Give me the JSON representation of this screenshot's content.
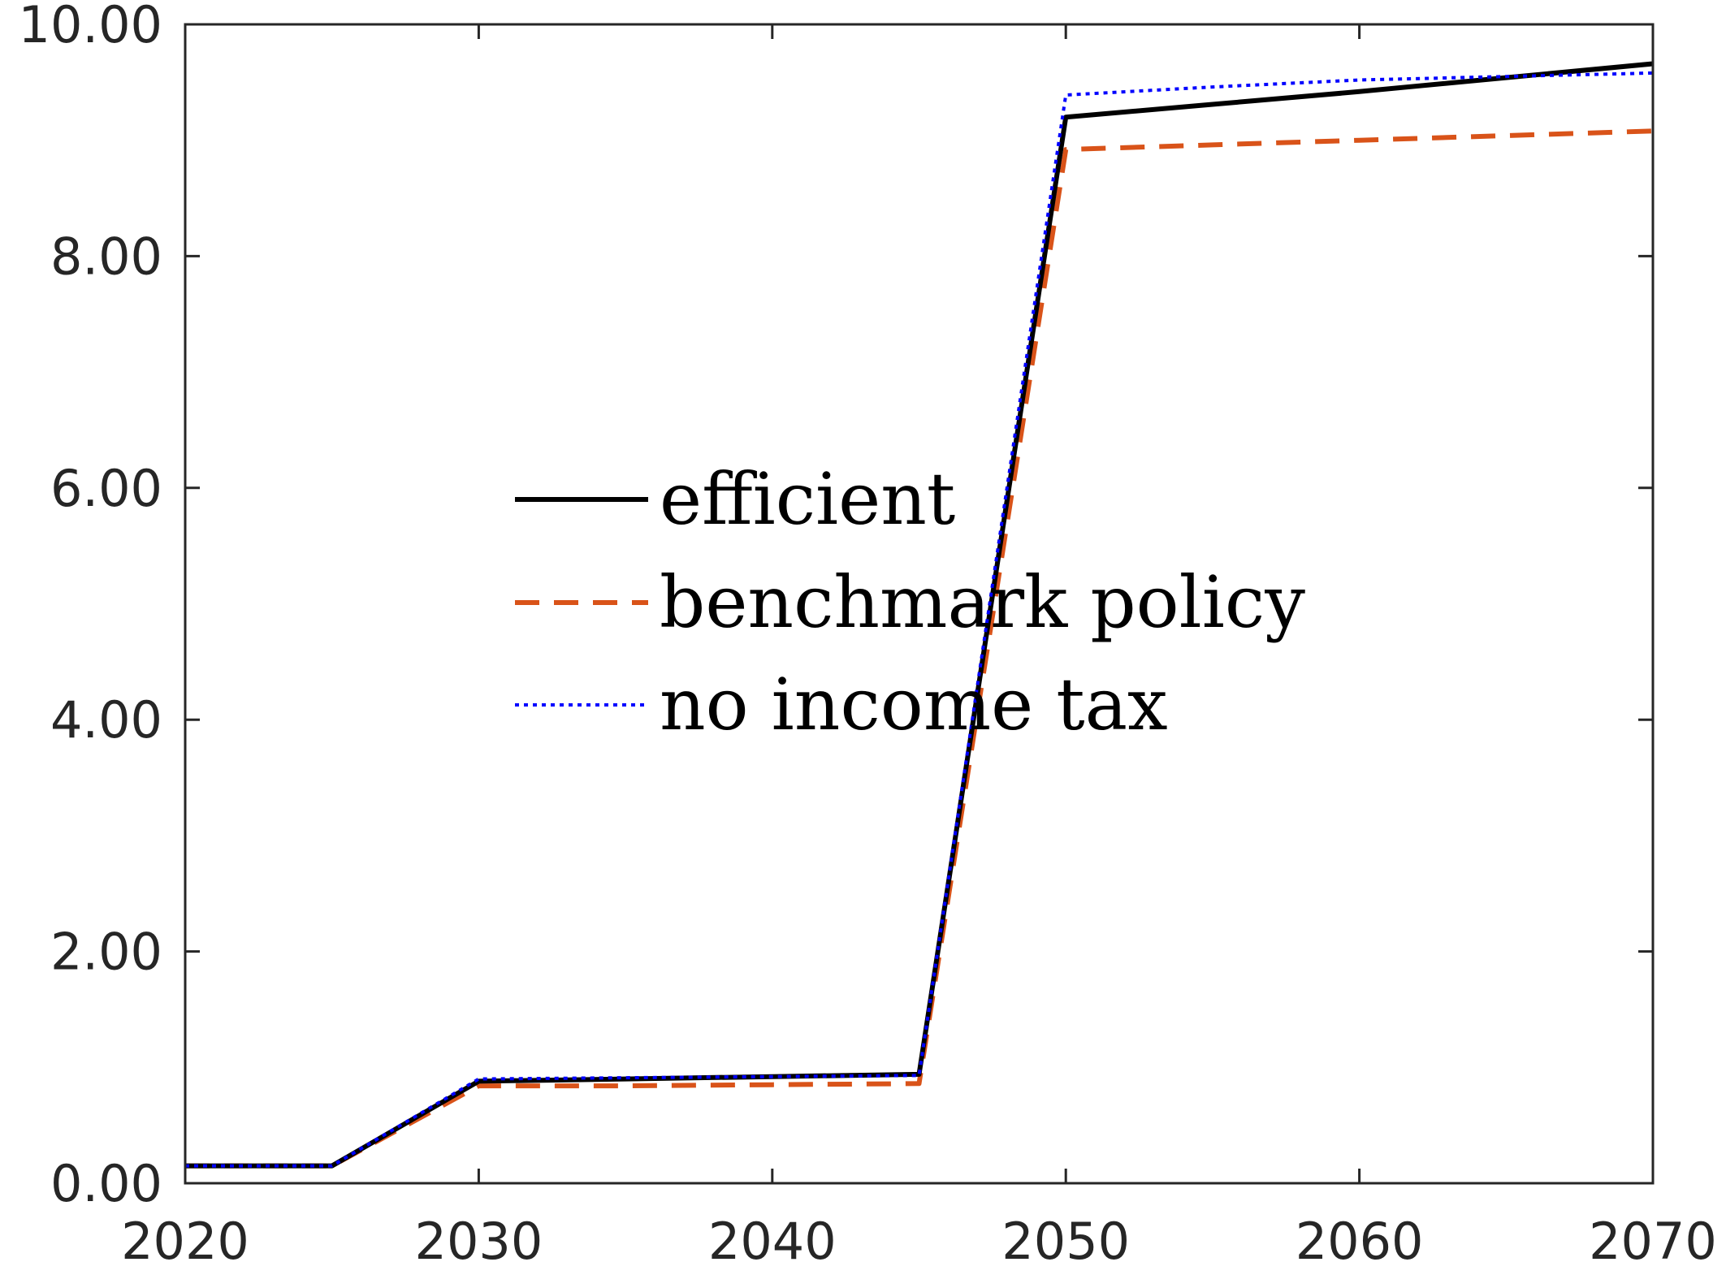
{
  "chart_data": {
    "type": "line",
    "title": "",
    "xlabel": "",
    "ylabel": "",
    "xlim": [
      2020,
      2070
    ],
    "ylim": [
      0,
      10
    ],
    "x_ticks": [
      2020,
      2030,
      2040,
      2050,
      2060,
      2070
    ],
    "x_tick_labels": [
      "2020",
      "2030",
      "2040",
      "2050",
      "2060",
      "2070"
    ],
    "y_ticks": [
      0,
      2,
      4,
      6,
      8,
      10
    ],
    "y_tick_labels": [
      "0.00",
      "2.00",
      "4.00",
      "6.00",
      "8.00",
      "10.00"
    ],
    "grid": false,
    "legend_placement": "center",
    "x": [
      2020,
      2025,
      2030,
      2035,
      2040,
      2045,
      2050,
      2055,
      2060,
      2065,
      2070
    ],
    "series": [
      {
        "name": "efficient",
        "color": "#000000",
        "style": "solid",
        "values": [
          0.15,
          0.15,
          0.88,
          0.9,
          0.92,
          0.94,
          9.2,
          9.31,
          9.42,
          9.54,
          9.66
        ]
      },
      {
        "name": "benchmark policy",
        "color": "#D95319",
        "style": "dashed",
        "values": [
          0.15,
          0.15,
          0.84,
          0.84,
          0.85,
          0.86,
          8.92,
          8.96,
          9.0,
          9.04,
          9.08
        ]
      },
      {
        "name": "no income tax",
        "color": "#0000FF",
        "style": "dotted",
        "values": [
          0.15,
          0.15,
          0.9,
          0.91,
          0.92,
          0.93,
          9.39,
          9.46,
          9.52,
          9.55,
          9.58
        ]
      }
    ]
  }
}
